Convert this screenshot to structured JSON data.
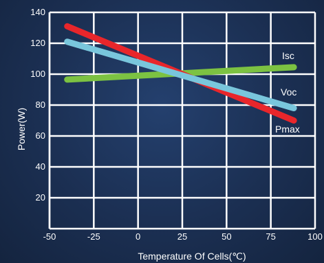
{
  "chart_data": {
    "type": "line",
    "title": "",
    "xlabel": "Temperature Of Cells(℃)",
    "ylabel": "Power(W)",
    "xlim": [
      -50,
      100
    ],
    "ylim": [
      0,
      140
    ],
    "x_ticks": [
      "-50",
      "-25",
      "0",
      "25",
      "50",
      "75",
      "100"
    ],
    "y_ticks": [
      "20",
      "40",
      "60",
      "80",
      "100",
      "120",
      "140"
    ],
    "grid": true,
    "series": [
      {
        "name": "Pmax",
        "color": "#e8262b",
        "x": [
          -40,
          88
        ],
        "y": [
          131,
          70
        ]
      },
      {
        "name": "Isc",
        "color": "#7cc242",
        "x": [
          -40,
          88
        ],
        "y": [
          96.5,
          104.5
        ]
      },
      {
        "name": "Voc",
        "color": "#79c6dc",
        "x": [
          -40,
          88
        ],
        "y": [
          121,
          78
        ]
      }
    ]
  }
}
